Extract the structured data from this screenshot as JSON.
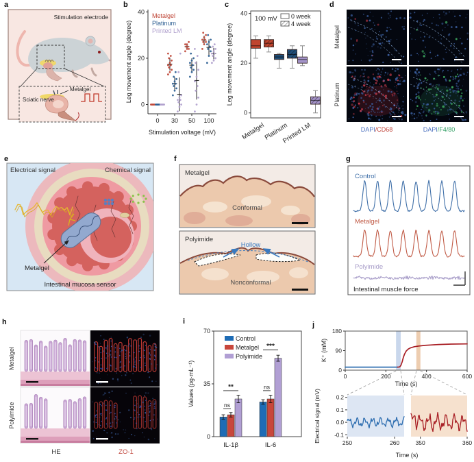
{
  "panel_letters": {
    "a": "a",
    "b": "b",
    "c": "c",
    "d": "d",
    "e": "e",
    "f": "f",
    "g": "g",
    "h": "h",
    "i": "i",
    "j": "j"
  },
  "panel_a": {
    "title": "Stimulation electrode",
    "metalgel_label": "Metalgel",
    "sciatic_label": "Sciatic nerve"
  },
  "panel_d": {
    "row_labels": [
      "Metalgel",
      "Platinum"
    ],
    "col_labels": [
      {
        "dapi": "DAPI",
        "marker": "/CD68",
        "dapi_color": "#4a6fbe",
        "marker_color": "#c0453b"
      },
      {
        "dapi": "DAPI",
        "marker": "/F4/80",
        "dapi_color": "#4a6fbe",
        "marker_color": "#2f9e62"
      }
    ]
  },
  "panel_e": {
    "electrical": "Electrical signal",
    "chemical": "Chemical signal",
    "metalgel": "Metalgel",
    "caption": "Intestinal mucosa sensor"
  },
  "panel_f": {
    "top_label": "Metalgel",
    "top_caption": "Conformal",
    "bottom_label": "Polyimide",
    "hollow": "Hollow",
    "bottom_caption": "Nonconformal"
  },
  "panel_h": {
    "row_labels": [
      "Metalgel",
      "Polyimide"
    ],
    "col_labels": [
      {
        "text": "HE",
        "color": "#333333"
      },
      {
        "text": "ZO-1",
        "color": "#c0453b"
      }
    ]
  },
  "chart_data": [
    {
      "id": "b",
      "type": "scatter",
      "xlabel": "Stimulation voltage (mV)",
      "ylabel": "Leg movement angle (degree)",
      "categories": [
        "0",
        "30",
        "50",
        "100"
      ],
      "yticks": [
        0,
        20,
        40
      ],
      "ylim": [
        -4,
        41
      ],
      "series": [
        {
          "name": "Metalgel",
          "color": "#bf4637",
          "points": [
            [
              0,
              0,
              0,
              0,
              0
            ],
            [
              13,
              14,
              15,
              16,
              17,
              17,
              18,
              19,
              20,
              21,
              22
            ],
            [
              23,
              24,
              24,
              25,
              25,
              26,
              26,
              27
            ],
            [
              24,
              26,
              27,
              27,
              28,
              28,
              29,
              30,
              31
            ]
          ]
        },
        {
          "name": "Platinum",
          "color": "#2d5f92",
          "points": [
            [
              0,
              0,
              0,
              0,
              0
            ],
            [
              4,
              6,
              7,
              8,
              9,
              9,
              10,
              11,
              12,
              14
            ],
            [
              12,
              14,
              15,
              16,
              17,
              18,
              19,
              20,
              22
            ],
            [
              18,
              21,
              23,
              24,
              25,
              26,
              27,
              28,
              30
            ]
          ]
        },
        {
          "name": "Printed LM",
          "color": "#b0a0cd",
          "points": [
            [
              0,
              0,
              0,
              0,
              0
            ],
            [
              -3,
              -1,
              0,
              1,
              2,
              2,
              3,
              4,
              14,
              22
            ],
            [
              -3,
              0,
              3,
              6,
              8,
              10,
              12,
              15,
              18,
              21,
              24
            ],
            [
              18,
              19,
              20,
              21,
              22,
              22,
              23,
              24,
              25,
              26
            ]
          ]
        }
      ]
    },
    {
      "id": "c",
      "type": "box",
      "annotation": "100 mV",
      "ylabel": "Leg movement angle (degree)",
      "yticks": [
        0,
        20,
        40
      ],
      "ylim": [
        -2,
        41
      ],
      "categories": [
        "Metalgel",
        "Platinum",
        "Printed LM"
      ],
      "colors": [
        "#c0452f",
        "#1f4e79",
        "#a393c8"
      ],
      "legend": [
        {
          "label": "0 week",
          "hatch": false
        },
        {
          "label": "4 week",
          "hatch": true
        }
      ],
      "series": [
        {
          "name": "0 week",
          "boxes": [
            {
              "lo": 22,
              "q1": 26,
              "med": 27,
              "q3": 29.5,
              "hi": 31
            },
            {
              "lo": 18,
              "q1": 21.5,
              "med": 22.5,
              "q3": 23.5,
              "hi": 24
            },
            {
              "lo": 19,
              "q1": 20,
              "med": 21.5,
              "q3": 22.5,
              "hi": 27
            }
          ]
        },
        {
          "name": "4 week",
          "boxes": [
            {
              "lo": 24.5,
              "q1": 26.5,
              "med": 28,
              "q3": 29.5,
              "hi": 31
            },
            {
              "lo": 18,
              "q1": 22,
              "med": 23.5,
              "q3": 25.5,
              "hi": 27
            },
            {
              "lo": 0,
              "q1": 3.5,
              "med": 5,
              "q3": 6.5,
              "hi": 9
            }
          ]
        }
      ]
    },
    {
      "id": "g",
      "type": "line",
      "caption": "Intestinal muscle force",
      "traces": [
        {
          "name": "Control",
          "color": "#3f6fa8",
          "peaks": 8,
          "amp": 44,
          "noise": 1.2
        },
        {
          "name": "Metalgel",
          "color": "#c05a45",
          "peaks": 8,
          "amp": 38,
          "noise": 1.2
        },
        {
          "name": "Polyimide",
          "color": "#a79cc8",
          "peaks": 0,
          "amp": 0,
          "noise": 1.6
        }
      ]
    },
    {
      "id": "i",
      "type": "bar",
      "ylabel": "Values (pg·mL⁻¹)",
      "yticks": [
        0,
        35,
        70
      ],
      "ylim": [
        0,
        70
      ],
      "categories": [
        "IL-1β",
        "IL-6"
      ],
      "series": [
        {
          "name": "Control",
          "color": "#1e6cb5",
          "values": [
            13,
            23
          ],
          "errors": [
            1.5,
            1.5
          ]
        },
        {
          "name": "Metalgel",
          "color": "#c8473c",
          "values": [
            14.5,
            25
          ],
          "errors": [
            1.5,
            2.5
          ]
        },
        {
          "name": "Polyimide",
          "color": "#b19fd4",
          "values": [
            25,
            52
          ],
          "errors": [
            2.5,
            2
          ]
        }
      ],
      "significance": [
        {
          "category": "IL-1β",
          "pairs": [
            {
              "label": "ns",
              "from": 0,
              "to": 1,
              "y": 18.5
            },
            {
              "label": "**",
              "from": 0,
              "to": 2,
              "y": 30.5
            }
          ]
        },
        {
          "category": "IL-6",
          "pairs": [
            {
              "label": "ns",
              "from": 0,
              "to": 1,
              "y": 30.5
            },
            {
              "label": "***",
              "from": 0,
              "to": 2,
              "y": 57.5
            }
          ]
        }
      ]
    },
    {
      "id": "j_top",
      "type": "line",
      "xlabel": "Time (s)",
      "ylabel": "K⁺ (mM)",
      "xticks": [
        0,
        200,
        400,
        600
      ],
      "yticks": [
        0,
        90,
        180
      ],
      "xlim": [
        0,
        600
      ],
      "ylim": [
        0,
        180
      ],
      "highlight_bands": [
        {
          "x0": 250,
          "x1": 273,
          "color": "#c9d7ec"
        },
        {
          "x0": 350,
          "x1": 370,
          "color": "#edcdb0"
        }
      ],
      "segments": [
        {
          "color": "#2e6eb0",
          "points": [
            [
              0,
              14
            ],
            [
              258,
              14
            ]
          ]
        },
        {
          "color": "#a81e24",
          "points": [
            [
              258,
              14
            ],
            [
              268,
              15
            ],
            [
              274,
              22
            ],
            [
              280,
              38
            ],
            [
              286,
              58
            ],
            [
              292,
              74
            ],
            [
              300,
              88
            ],
            [
              310,
              97
            ],
            [
              322,
              103
            ],
            [
              340,
              108
            ],
            [
              360,
              111
            ],
            [
              390,
              114
            ],
            [
              420,
              116
            ],
            [
              460,
              118
            ],
            [
              520,
              120
            ],
            [
              600,
              121
            ]
          ]
        }
      ]
    },
    {
      "id": "j_bottom",
      "type": "line",
      "xlabel": "Time (s)",
      "ylabel": "Electrical signal (mV)",
      "yticks": [
        "0.2",
        "0.1",
        "0.0",
        "-0.1"
      ],
      "panels": [
        {
          "bg": "#dde6f3",
          "color": "#2e6eb0",
          "xticks": [
            250,
            260
          ],
          "xlim": [
            250,
            262
          ],
          "amp": 0.03
        },
        {
          "bg": "#f6e1ce",
          "color": "#a81e24",
          "xticks": [
            350,
            360
          ],
          "xlim": [
            348,
            360
          ],
          "amp": 0.05
        }
      ]
    }
  ]
}
